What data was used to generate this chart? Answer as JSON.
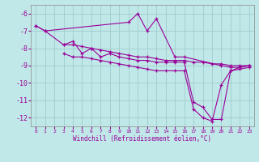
{
  "background_color": "#c0e8e8",
  "grid_color": "#a0cccc",
  "line_color": "#990099",
  "marker": "+",
  "xlim": [
    -0.5,
    23.5
  ],
  "ylim": [
    -12.5,
    -5.5
  ],
  "xticks": [
    0,
    1,
    2,
    3,
    4,
    5,
    6,
    7,
    8,
    9,
    10,
    11,
    12,
    13,
    14,
    15,
    16,
    17,
    18,
    19,
    20,
    21,
    22,
    23
  ],
  "yticks": [
    -12,
    -11,
    -10,
    -9,
    -8,
    -7,
    -6
  ],
  "xlabel": "Windchill (Refroidissement éolien,°C)",
  "series": [
    {
      "x": [
        0,
        1,
        10,
        11,
        12,
        13,
        15,
        16,
        20,
        21,
        22,
        23
      ],
      "y": [
        -6.7,
        -7.0,
        -6.5,
        -6.0,
        -7.0,
        -6.3,
        -8.5,
        -8.5,
        -9.0,
        -9.1,
        -9.1,
        -9.0
      ]
    },
    {
      "x": [
        0,
        1,
        3,
        4,
        5,
        6,
        7,
        8,
        9,
        10,
        11,
        12,
        13,
        14,
        15,
        16,
        17,
        18,
        19,
        20,
        21,
        22,
        23
      ],
      "y": [
        -6.7,
        -7.0,
        -7.8,
        -7.8,
        -7.9,
        -8.0,
        -8.1,
        -8.2,
        -8.3,
        -8.4,
        -8.5,
        -8.5,
        -8.6,
        -8.7,
        -8.7,
        -8.7,
        -8.8,
        -8.8,
        -8.9,
        -8.9,
        -9.0,
        -9.0,
        -9.0
      ]
    },
    {
      "x": [
        3,
        4,
        5,
        6,
        7,
        8,
        9,
        10,
        11,
        12,
        13,
        14,
        15,
        16,
        17,
        18,
        19,
        20,
        21,
        22,
        23
      ],
      "y": [
        -7.8,
        -7.6,
        -8.3,
        -8.0,
        -8.5,
        -8.3,
        -8.5,
        -8.6,
        -8.7,
        -8.7,
        -8.8,
        -8.8,
        -8.8,
        -8.8,
        -11.1,
        -11.4,
        -12.1,
        -12.1,
        -9.3,
        -9.2,
        -9.1
      ]
    },
    {
      "x": [
        3,
        4,
        5,
        6,
        7,
        8,
        9,
        10,
        11,
        12,
        13,
        14,
        15,
        16,
        17,
        18,
        19,
        20,
        21,
        22,
        23
      ],
      "y": [
        -8.3,
        -8.5,
        -8.5,
        -8.6,
        -8.7,
        -8.8,
        -8.9,
        -9.0,
        -9.1,
        -9.2,
        -9.3,
        -9.3,
        -9.3,
        -9.3,
        -11.5,
        -12.0,
        -12.2,
        -10.1,
        -9.3,
        -9.1,
        -9.0
      ]
    }
  ]
}
